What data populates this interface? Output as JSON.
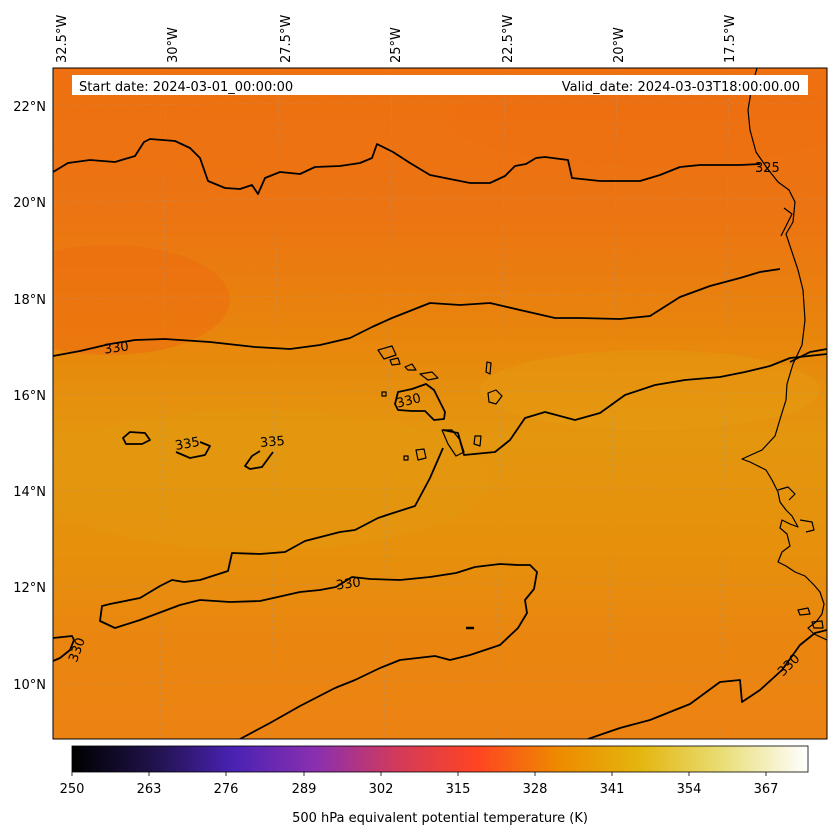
{
  "header": {
    "start_date": "Start date: 2024-03-01_00:00:00",
    "valid_date": "Valid_date: 2024-03-03T18:00:00.00"
  },
  "map": {
    "lon_labels": [
      "32.5°W",
      "30°W",
      "27.5°W",
      "25°W",
      "22.5°W",
      "20°W",
      "17.5°W"
    ],
    "lat_labels": [
      "22°N",
      "20°N",
      "18°N",
      "16°N",
      "14°N",
      "12°N",
      "10°N"
    ],
    "contour_labels": [
      "330",
      "330",
      "335",
      "335",
      "325",
      "330",
      "330",
      "330"
    ]
  },
  "colorbar": {
    "ticks": [
      "250",
      "263",
      "276",
      "289",
      "302",
      "315",
      "328",
      "341",
      "354",
      "367"
    ],
    "label": "500 hPa equivalent potential temperature (K)",
    "colors": [
      "#000000",
      "#20124a",
      "#4a22b4",
      "#8a2fb0",
      "#d13a5c",
      "#ff4422",
      "#ee8a00",
      "#e4b50e",
      "#e8dc72",
      "#ffffff"
    ]
  },
  "colors": {
    "field_warm": "#ee7212",
    "field_mid": "#e98a0a",
    "field_band": "#e49410",
    "contour": "#000000",
    "coastline": "#000000"
  }
}
